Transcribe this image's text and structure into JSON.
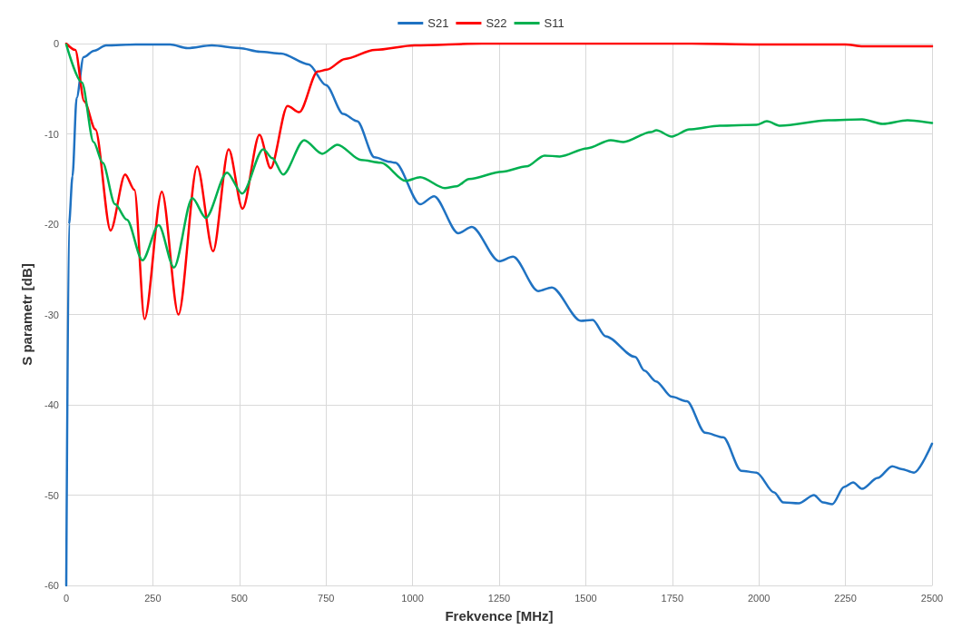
{
  "chart_data": {
    "type": "line",
    "xlabel": "Frekvence [MHz]",
    "ylabel": "S parametr [dB]",
    "xlim": [
      0,
      2500
    ],
    "xticks": [
      0,
      250,
      500,
      750,
      1000,
      1250,
      1500,
      1750,
      2000,
      2250,
      2500
    ],
    "ylim": [
      -60,
      0
    ],
    "yticks": [
      -60,
      -50,
      -40,
      -30,
      -20,
      -10,
      0
    ],
    "grid": true,
    "legend": "top",
    "marker": "none",
    "line_style": "solid",
    "series": [
      {
        "name": "S21",
        "color": "#1f72c2",
        "x": [
          0,
          8,
          18,
          30,
          50,
          80,
          115,
          200,
          300,
          350,
          420,
          500,
          560,
          620,
          700,
          750,
          800,
          840,
          890,
          935,
          950,
          1022,
          1062,
          1132,
          1171,
          1250,
          1290,
          1363,
          1402,
          1486,
          1520,
          1557,
          1643,
          1669,
          1703,
          1748,
          1792,
          1845,
          1897,
          1949,
          1993,
          2044,
          2070,
          2115,
          2159,
          2185,
          2212,
          2246,
          2272,
          2298,
          2343,
          2385,
          2411,
          2448,
          2500
        ],
        "values": [
          -60,
          -20,
          -14.7,
          -6,
          -1.5,
          -0.8,
          -0.2,
          -0.1,
          -0.1,
          -0.5,
          -0.2,
          -0.5,
          -0.9,
          -1.1,
          -2.3,
          -4.6,
          -7.8,
          -8.6,
          -12.6,
          -13.1,
          -13.2,
          -17.8,
          -16.9,
          -21,
          -20.3,
          -24.1,
          -23.6,
          -27.4,
          -27,
          -30.7,
          -30.6,
          -32.4,
          -34.7,
          -36.2,
          -37.4,
          -39.1,
          -39.6,
          -43.1,
          -43.6,
          -47.3,
          -47.5,
          -49.7,
          -50.8,
          -50.9,
          -50,
          -50.8,
          -51,
          -49.1,
          -48.6,
          -49.3,
          -48.1,
          -46.8,
          -47.1,
          -47.5,
          -44.3
        ]
      },
      {
        "name": "S22",
        "color": "#ff0000",
        "x": [
          0,
          26,
          52,
          84,
          128,
          170,
          197,
          226,
          276,
          324,
          378,
          424,
          469,
          509,
          558,
          590,
          639,
          673,
          726,
          752,
          805,
          891,
          1006,
          1200,
          1500,
          1800,
          2000,
          2250,
          2300,
          2500
        ],
        "values": [
          0,
          -0.7,
          -6.4,
          -9.5,
          -20.7,
          -14.5,
          -16.2,
          -30.5,
          -16.4,
          -30,
          -13.6,
          -23,
          -11.7,
          -18.3,
          -10.1,
          -13.8,
          -6.9,
          -7.6,
          -3.1,
          -2.9,
          -1.7,
          -0.7,
          -0.2,
          0,
          0,
          0,
          -0.1,
          -0.1,
          -0.3,
          -0.3
        ]
      },
      {
        "name": "S11",
        "color": "#00b050",
        "x": [
          0,
          45,
          79,
          105,
          141,
          175,
          220,
          267,
          311,
          364,
          403,
          464,
          508,
          569,
          595,
          626,
          687,
          739,
          783,
          852,
          909,
          980,
          1022,
          1093,
          1127,
          1163,
          1258,
          1329,
          1381,
          1425,
          1504,
          1572,
          1609,
          1688,
          1704,
          1748,
          1800,
          1887,
          1993,
          2023,
          2062,
          2201,
          2298,
          2358,
          2429,
          2500
        ],
        "values": [
          -0.1,
          -4.3,
          -10.9,
          -13.2,
          -17.8,
          -19.5,
          -24,
          -20.1,
          -24.8,
          -17.1,
          -19.3,
          -14.3,
          -16.6,
          -11.7,
          -12.7,
          -14.5,
          -10.7,
          -12.2,
          -11.2,
          -12.9,
          -13.2,
          -15.2,
          -14.8,
          -16,
          -15.8,
          -15,
          -14.2,
          -13.6,
          -12.4,
          -12.5,
          -11.6,
          -10.7,
          -10.9,
          -9.8,
          -9.6,
          -10.3,
          -9.5,
          -9.1,
          -9,
          -8.6,
          -9.1,
          -8.5,
          -8.4,
          -8.9,
          -8.5,
          -8.8
        ]
      }
    ]
  }
}
